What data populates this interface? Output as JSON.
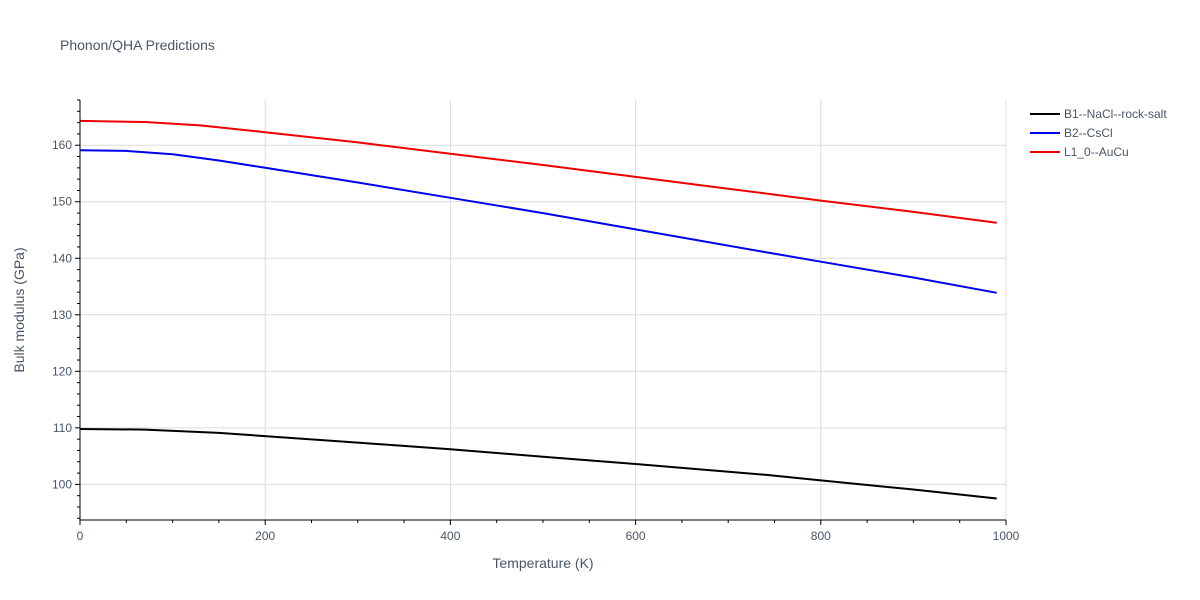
{
  "chart_data": {
    "type": "line",
    "title": "Phonon/QHA Predictions",
    "xlabel": "Temperature (K)",
    "ylabel": "Bulk modulus (GPa)",
    "xlim": [
      0,
      1000
    ],
    "ylim": [
      93.7,
      168
    ],
    "x_ticks": [
      0,
      200,
      400,
      600,
      800,
      1000
    ],
    "y_ticks": [
      100,
      110,
      120,
      130,
      140,
      150,
      160
    ],
    "grid": true,
    "legend_position": "top-right",
    "series": [
      {
        "name": "B1--NaCl--rock-salt",
        "color": "#000000",
        "x": [
          0,
          70,
          150,
          300,
          400,
          500,
          600,
          740,
          800,
          900,
          990
        ],
        "y": [
          109.8,
          109.7,
          109.1,
          107.4,
          106.2,
          104.9,
          103.6,
          101.7,
          100.7,
          99.1,
          97.5
        ]
      },
      {
        "name": "B2--CsCl",
        "color": "#0000ee",
        "x": [
          0,
          50,
          100,
          150,
          200,
          300,
          400,
          500,
          600,
          740,
          800,
          900,
          990
        ],
        "y": [
          159.1,
          159.0,
          158.4,
          157.3,
          156.0,
          153.4,
          150.7,
          148.0,
          145.1,
          141.1,
          139.4,
          136.6,
          133.9
        ]
      },
      {
        "name": "L1_0--AuCu",
        "color": "#ee0000",
        "x": [
          0,
          70,
          130,
          200,
          300,
          400,
          500,
          600,
          700,
          800,
          900,
          990
        ],
        "y": [
          164.3,
          164.1,
          163.5,
          162.3,
          160.5,
          158.5,
          156.5,
          154.4,
          152.3,
          150.2,
          148.2,
          146.3
        ]
      }
    ]
  }
}
